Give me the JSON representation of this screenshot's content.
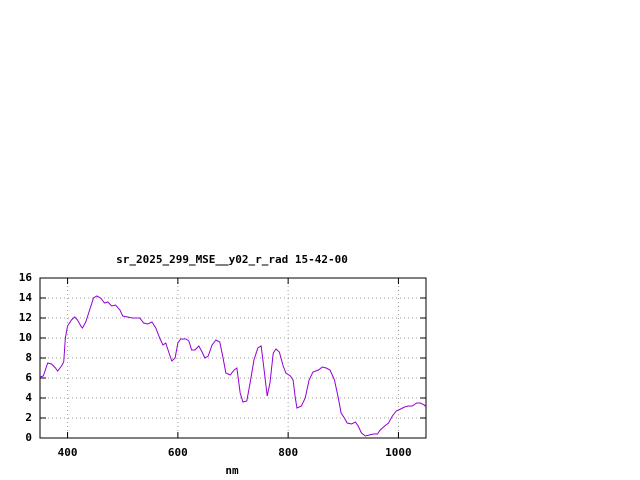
{
  "chart_data": {
    "type": "line",
    "title": "sr_2025_299_MSE__y02_r_rad 15-42-00",
    "x_label": "nm",
    "x": [
      350,
      356,
      364,
      371,
      378,
      382,
      389,
      393,
      396,
      400,
      407,
      413,
      418,
      424,
      427,
      433,
      440,
      447,
      453,
      460,
      467,
      473,
      480,
      487,
      495,
      500,
      509,
      518,
      531,
      538,
      545,
      553,
      560,
      567,
      573,
      578,
      584,
      589,
      595,
      600,
      605,
      615,
      620,
      625,
      631,
      638,
      644,
      649,
      655,
      662,
      669,
      676,
      682,
      687,
      695,
      702,
      707,
      713,
      718,
      725,
      731,
      738,
      745,
      751,
      756,
      762,
      767,
      773,
      778,
      784,
      791,
      796,
      804,
      809,
      813,
      816,
      824,
      831,
      838,
      845,
      855,
      862,
      869,
      876,
      884,
      891,
      896,
      902,
      907,
      915,
      922,
      927,
      933,
      940,
      947,
      955,
      962,
      967,
      975,
      982,
      989,
      996,
      1004,
      1011,
      1018,
      1025,
      1033,
      1040,
      1047,
      1050
    ],
    "series": [
      {
        "color": "#9400d3",
        "values": [
          6.1,
          6.2,
          7.5,
          7.4,
          7.0,
          6.7,
          7.2,
          7.6,
          10,
          11.2,
          11.8,
          12.1,
          11.8,
          11.2,
          11.0,
          11.6,
          12.8,
          14.0,
          14.2,
          14.0,
          13.5,
          13.6,
          13.2,
          13.3,
          12.8,
          12.2,
          12.1,
          12.0,
          12.0,
          11.5,
          11.4,
          11.6,
          11.0,
          10.0,
          9.3,
          9.5,
          8.5,
          7.7,
          8.0,
          9.5,
          9.9,
          9.9,
          9.7,
          8.8,
          8.8,
          9.2,
          8.6,
          8.0,
          8.2,
          9.3,
          9.8,
          9.6,
          8.0,
          6.5,
          6.3,
          6.8,
          7.0,
          4.5,
          3.6,
          3.7,
          5.5,
          7.8,
          9.0,
          9.2,
          7.0,
          4.2,
          5.5,
          8.5,
          8.9,
          8.6,
          7.2,
          6.5,
          6.2,
          5.8,
          4.0,
          3.0,
          3.2,
          4.0,
          5.8,
          6.6,
          6.8,
          7.1,
          7.0,
          6.8,
          5.8,
          4.0,
          2.5,
          2.0,
          1.5,
          1.4,
          1.6,
          1.2,
          0.5,
          0.2,
          0.3,
          0.4,
          0.4,
          0.8,
          1.2,
          1.5,
          2.2,
          2.7,
          2.9,
          3.1,
          3.2,
          3.2,
          3.5,
          3.5,
          3.3,
          3.1
        ]
      }
    ],
    "xlim": [
      350,
      1050
    ],
    "xticks": [
      400,
      600,
      800,
      1000
    ],
    "ylim": [
      0,
      16
    ],
    "yticks": [
      0,
      2,
      4,
      6,
      8,
      10,
      12,
      14,
      16
    ],
    "grid": true
  }
}
